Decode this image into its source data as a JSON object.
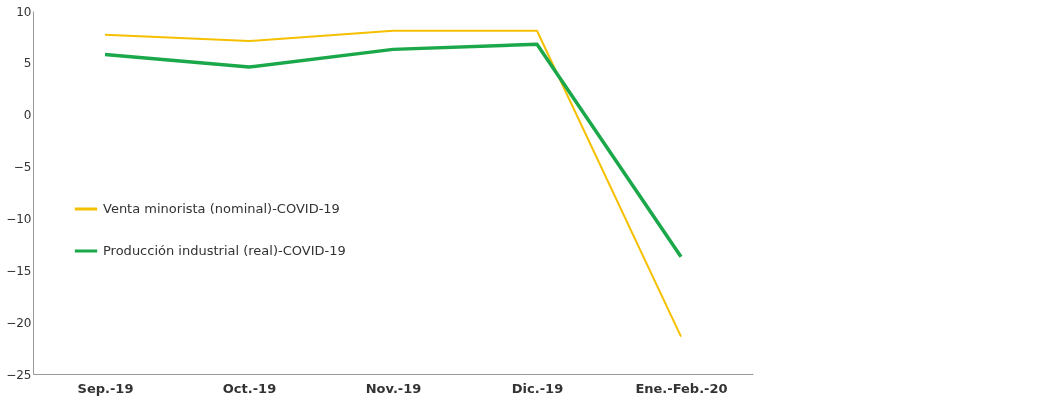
{
  "chart_data": {
    "type": "line",
    "categories": [
      "Sep.-19",
      "Oct.-19",
      "Nov.-19",
      "Dic.-19",
      "Ene.-Feb.-20"
    ],
    "series": [
      {
        "name": "Venta minorista (nominal)-COVID-19",
        "color": "#f5c000",
        "values": [
          7.7,
          7.1,
          8.1,
          8.1,
          -21.4
        ]
      },
      {
        "name": "Producción industrial (real)-COVID-19",
        "color": "#1aa84a",
        "values": [
          5.8,
          4.6,
          6.3,
          6.8,
          -13.7
        ]
      }
    ],
    "ylim": [
      -25,
      10
    ],
    "yticks": [
      -25,
      -20,
      -15,
      -10,
      -5,
      0,
      5,
      10
    ],
    "grid": false,
    "legend": "left",
    "marker": "none",
    "line_style": "solid"
  }
}
